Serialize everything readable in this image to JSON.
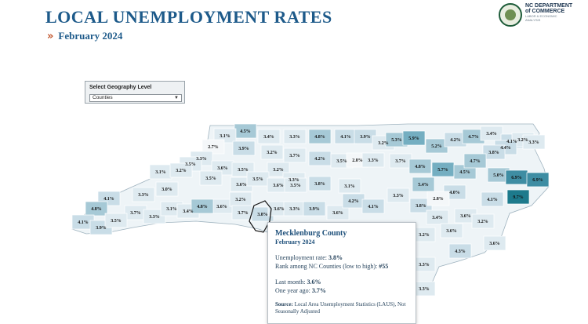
{
  "header": {
    "title": "LOCAL UNEMPLOYMENT RATES",
    "chevron": "»",
    "subtitle": "February 2024"
  },
  "logo": {
    "line1": "NC DEPARTMENT",
    "line2": "of COMMERCE",
    "line3": "LABOR & ECONOMIC",
    "line4": "ANALYSIS"
  },
  "geography": {
    "label": "Select Geography Level",
    "selected": "Counties"
  },
  "colors": {
    "scale": [
      "#f4f7f9",
      "#deeaf0",
      "#c9dde7",
      "#a6c9d6",
      "#74aec1",
      "#3e8da3",
      "#1d7a8c"
    ],
    "highlight_outline": "#111111"
  },
  "map": {
    "type": "choropleth",
    "unit": "%",
    "labels": [
      "4.5%",
      "3.4%",
      "3.3%",
      "4.8%",
      "4.1%",
      "3.9%",
      "3.1%",
      "2.7%",
      "3.9%",
      "3.2%",
      "3.7%",
      "4.2%",
      "3.5%",
      "2.8%",
      "3.3%",
      "3.2%",
      "5.3%",
      "5.9%",
      "5.2%",
      "4.2%",
      "4.7%",
      "3.4%",
      "4.1%",
      "3.2%",
      "4.4%",
      "3.8%",
      "3.3%",
      "3.3%",
      "3.5%",
      "3.1%",
      "3.2%",
      "3.6%",
      "3.5%",
      "3.2%",
      "3.3%",
      "3.5%",
      "3.6%",
      "3.8%",
      "3.1%",
      "3.7%",
      "4.8%",
      "5.7%",
      "4.5%",
      "4.7%",
      "5.0%",
      "6.9%",
      "6.9%",
      "3.0%",
      "3.5%",
      "3.6%",
      "3.5%",
      "5.4%",
      "4.0%",
      "3.3%",
      "4.1%",
      "4.8%",
      "3.7%",
      "3.3%",
      "3.1%",
      "3.4%",
      "3.6%",
      "3.2%",
      "3.7%",
      "3.8%",
      "3.6%",
      "3.3%",
      "3.9%",
      "3.6%",
      "4.2%",
      "4.1%",
      "3.3%",
      "3.8%",
      "2.8%",
      "4.1%",
      "9.7%",
      "4.1%",
      "3.9%",
      "3.5%",
      "4.8%",
      "3.4%",
      "3.6%",
      "3.2%",
      "3.6%",
      "4.3%",
      "3.6%",
      "3.3%",
      "3.3%",
      "3.2%"
    ]
  },
  "tooltip": {
    "county": "Mecklenburg County",
    "month": "February 2024",
    "rate_label": "Unemployment rate:",
    "rate_value": "3.8%",
    "rank_label": "Rank among NC Counties (low to high):",
    "rank_value": "#55",
    "last_month_label": "Last month:",
    "last_month_value": "3.6%",
    "one_year_label": "One year ago:",
    "one_year_value": "3.7%",
    "source_label": "Source:",
    "source_text": "Local Area Unemployment Statistics (LAUS), Not Seasonally Adjusted"
  }
}
